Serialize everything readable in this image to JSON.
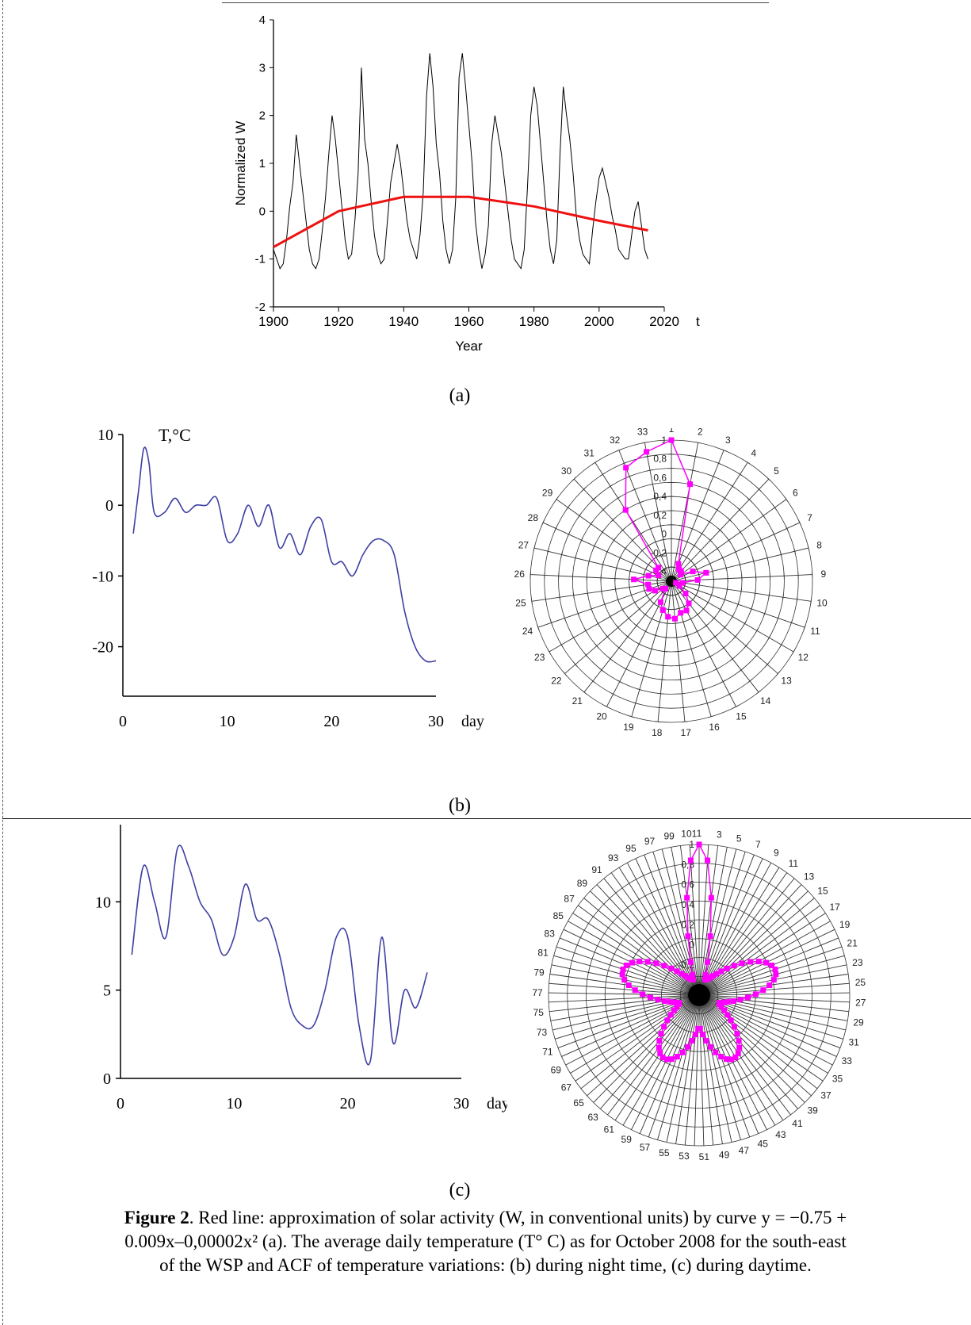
{
  "panel_labels": {
    "a": "(a)",
    "b": "(b)",
    "c": "(c)"
  },
  "caption": {
    "bold": "Figure 2",
    "line1": ". Red line: approximation of solar activity (W, in conventional units) by curve y = −0.75 +",
    "line2": "0.009x–0,00002x² (a). The average daily temperature (T° C) as for October 2008 for the south-east",
    "line3": "of the WSP and ACF of temperature variations: (b) during night time, (c) during daytime."
  },
  "colors": {
    "fit": "#ee1111",
    "series_a": "#000000",
    "temp": "#3f3fa3",
    "acf": "#ff00ff",
    "axis": "#000000"
  },
  "chart_data": [
    {
      "id": "a",
      "type": "line",
      "xlabel": "Year",
      "ylabel": "Normalized W",
      "axis_suffix": "t",
      "xlim": [
        1900,
        2020
      ],
      "ylim": [
        -2,
        4
      ],
      "xticks": [
        1900,
        1920,
        1940,
        1960,
        1980,
        2000,
        2020
      ],
      "yticks": [
        -2,
        -1,
        0,
        1,
        2,
        3,
        4
      ],
      "series": [
        {
          "x": [
            1900,
            1901,
            1902,
            1903,
            1904,
            1905,
            1906,
            1907,
            1908,
            1909,
            1910,
            1911,
            1912,
            1913,
            1914,
            1915,
            1916,
            1917,
            1918,
            1919,
            1920,
            1921,
            1922,
            1923,
            1924,
            1925,
            1926,
            1927,
            1928,
            1929,
            1930,
            1931,
            1932,
            1933,
            1934,
            1935,
            1936,
            1937,
            1938,
            1939,
            1940,
            1941,
            1942,
            1943,
            1944,
            1945,
            1946,
            1947,
            1948,
            1949,
            1950,
            1951,
            1952,
            1953,
            1954,
            1955,
            1956,
            1957,
            1958,
            1959,
            1960,
            1961,
            1962,
            1963,
            1964,
            1965,
            1966,
            1967,
            1968,
            1969,
            1970,
            1971,
            1972,
            1973,
            1974,
            1975,
            1976,
            1977,
            1978,
            1979,
            1980,
            1981,
            1982,
            1983,
            1984,
            1985,
            1986,
            1987,
            1988,
            1989,
            1990,
            1991,
            1992,
            1993,
            1994,
            1995,
            1996,
            1997,
            1998,
            1999,
            2000,
            2001,
            2002,
            2003,
            2004,
            2005,
            2006,
            2007,
            2008,
            2009,
            2010,
            2011,
            2012,
            2013,
            2014,
            2015
          ],
          "y": [
            -0.8,
            -1.0,
            -1.2,
            -1.1,
            -0.6,
            0.1,
            0.6,
            1.6,
            1.0,
            0.4,
            -0.2,
            -0.8,
            -1.1,
            -1.2,
            -1.0,
            -0.4,
            0.3,
            1.2,
            2.0,
            1.5,
            0.8,
            0.1,
            -0.6,
            -1.0,
            -0.9,
            -0.2,
            0.8,
            3.0,
            1.5,
            1.0,
            0.2,
            -0.5,
            -0.9,
            -1.1,
            -1.0,
            -0.2,
            0.6,
            1.0,
            1.4,
            1.0,
            0.4,
            -0.2,
            -0.6,
            -0.8,
            -1.0,
            -0.5,
            0.4,
            2.4,
            3.3,
            2.6,
            1.4,
            0.8,
            -0.2,
            -0.8,
            -1.1,
            -0.8,
            0.3,
            2.8,
            3.3,
            2.6,
            1.8,
            1.0,
            -0.2,
            -0.8,
            -1.2,
            -0.9,
            -0.3,
            1.4,
            2.0,
            1.6,
            1.2,
            0.6,
            0.0,
            -0.6,
            -1.0,
            -1.1,
            -1.2,
            -0.8,
            0.5,
            2.0,
            2.6,
            2.2,
            1.4,
            0.6,
            -0.2,
            -0.8,
            -1.1,
            -0.6,
            1.2,
            2.6,
            2.0,
            1.5,
            0.8,
            -0.1,
            -0.6,
            -0.9,
            -1.0,
            -1.1,
            -0.4,
            0.2,
            0.7,
            0.9,
            0.6,
            0.3,
            -0.1,
            -0.4,
            -0.8,
            -0.9,
            -1.0,
            -1.0,
            -0.5,
            0.0,
            0.2,
            -0.3,
            -0.8,
            -1.0
          ]
        },
        {
          "name": "",
          "x": [
            1900,
            1920,
            1940,
            1960,
            1980,
            2000,
            2015
          ],
          "y": [
            -0.75,
            -0.0,
            0.3,
            0.3,
            0.1,
            -0.2,
            -0.4
          ]
        }
      ]
    },
    {
      "id": "b-temperature",
      "type": "line",
      "ylabel": "T,°C",
      "xlabel": "day",
      "xlim": [
        0,
        30
      ],
      "ylim": [
        -27,
        10
      ],
      "xticks": [
        0,
        10,
        20,
        30
      ],
      "yticks": [
        10,
        0,
        -10,
        -20
      ],
      "x": [
        1,
        1.5,
        2,
        2.5,
        3,
        4,
        5,
        6,
        7,
        8,
        9,
        10,
        11,
        12,
        13,
        14,
        15,
        16,
        17,
        18,
        19,
        20,
        21,
        22,
        23,
        24,
        25,
        26,
        27,
        28,
        29,
        30
      ],
      "y": [
        -4,
        2,
        8,
        6,
        -1,
        -1,
        1,
        -1,
        0,
        0,
        1,
        -5,
        -4,
        0,
        -3,
        0,
        -6,
        -4,
        -7,
        -3,
        -2,
        -8,
        -8,
        -10,
        -7,
        -5,
        -5,
        -7,
        -15,
        -20,
        -22,
        -22
      ]
    },
    {
      "id": "b-acf",
      "type": "radar",
      "spokes": [
        "1",
        "2",
        "3",
        "4",
        "5",
        "6",
        "7",
        "8",
        "9",
        "10",
        "11",
        "12",
        "13",
        "14",
        "15",
        "16",
        "17",
        "18",
        "19",
        "20",
        "21",
        "22",
        "23",
        "24",
        "25",
        "26",
        "27",
        "28",
        "29",
        "30",
        "31",
        "32",
        "33"
      ],
      "rings": [
        "1",
        "0,8",
        "0,6",
        "0,4",
        "0,2",
        "0",
        "-0,2",
        "-0,4"
      ],
      "rmin": -0.5,
      "rmax": 1.0,
      "values": [
        1.0,
        0.55,
        -0.3,
        -0.35,
        -0.35,
        -0.38,
        -0.25,
        -0.12,
        -0.22,
        -0.38,
        -0.45,
        -0.4,
        -0.3,
        -0.2,
        -0.15,
        -0.15,
        -0.1,
        -0.12,
        -0.18,
        -0.25,
        -0.4,
        -0.38,
        -0.3,
        -0.25,
        -0.25,
        -0.1,
        -0.25,
        -0.35,
        -0.3,
        -0.3,
        0.4,
        0.8,
        0.9
      ]
    },
    {
      "id": "c-temperature",
      "type": "line",
      "ylabel": "T,°C",
      "xlabel": "day",
      "xlim": [
        0,
        30
      ],
      "ylim": [
        0,
        15
      ],
      "xticks": [
        0,
        10,
        20,
        30
      ],
      "yticks": [
        15,
        10,
        5,
        0
      ],
      "x": [
        1,
        2,
        3,
        4,
        5,
        6,
        7,
        8,
        9,
        10,
        11,
        12,
        13,
        14,
        15,
        16,
        17,
        18,
        19,
        20,
        21,
        22,
        23,
        24,
        25,
        26,
        27
      ],
      "y": [
        7,
        12,
        10,
        8,
        13,
        12,
        10,
        9,
        7,
        8,
        11,
        9,
        9,
        7,
        4,
        3,
        3,
        5,
        8,
        8,
        3,
        1,
        8,
        2,
        5,
        4,
        6
      ]
    },
    {
      "id": "c-acf",
      "type": "radar",
      "spokes_count": 101,
      "spoke_labels": [
        "1",
        "3",
        "5",
        "7",
        "9",
        "11",
        "13",
        "15",
        "17",
        "19",
        "21",
        "23",
        "25",
        "27",
        "29",
        "31",
        "33",
        "35",
        "37",
        "39",
        "41",
        "43",
        "45",
        "47",
        "49",
        "51",
        "53",
        "55",
        "57",
        "59",
        "61",
        "63",
        "65",
        "67",
        "69",
        "71",
        "73",
        "75",
        "77",
        "79",
        "81",
        "83",
        "85",
        "87",
        "89",
        "91",
        "93",
        "95",
        "97",
        "99",
        "101"
      ],
      "rings": [
        "1",
        "0,8",
        "0,6",
        "0,4",
        "0,2",
        "0",
        "-0,2"
      ],
      "rmin": -0.5,
      "rmax": 1.0
    }
  ]
}
